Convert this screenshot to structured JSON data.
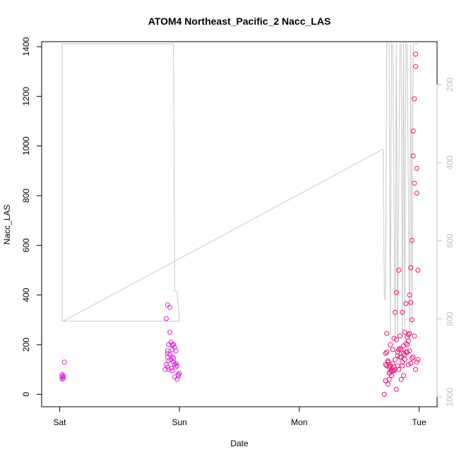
{
  "chart_data": {
    "type": "scatter",
    "title": "ATOM4 Northeast_Pacific_2 Nacc_LAS",
    "xlabel": "Date",
    "ylabel": "Nacc_LAS",
    "x_ticks": [
      "Sat",
      "Sun",
      "Mon",
      "Tue"
    ],
    "x_tick_days": [
      0,
      1,
      2,
      3
    ],
    "xlim_days": [
      -0.15,
      3.15
    ],
    "ylim": [
      -50,
      1420
    ],
    "y_ticks": [
      0,
      200,
      400,
      600,
      800,
      1000,
      1200,
      1400
    ],
    "y2_ticks": [
      200,
      400,
      600,
      800,
      1000
    ],
    "y2lim_reversed": [
      1025,
      90
    ],
    "grid": false,
    "legend": "none",
    "colors": {
      "points_magenta": "#dd22dd",
      "points_pink": "#ee1177",
      "altitude_line": "#c8c8c8",
      "axis": "#000000",
      "right_axis": "#bfbfbf"
    },
    "series": [
      {
        "points_day": [
          0.02,
          0.03,
          0.02,
          0.03,
          0.02,
          0.03,
          0.04
        ],
        "points_value": [
          62,
          65,
          70,
          75,
          80,
          72,
          130
        ],
        "color": "#dd22dd"
      },
      {
        "points_day": [
          0.88,
          0.89,
          0.9,
          0.9,
          0.91,
          0.89,
          0.92,
          0.93,
          0.9,
          0.91,
          0.94,
          0.92,
          0.93,
          0.95,
          0.96,
          0.94,
          0.95,
          0.97,
          0.96,
          0.97,
          0.98,
          0.99,
          0.93,
          0.94,
          0.92,
          0.9,
          0.96,
          0.98,
          0.99,
          1.0,
          0.97,
          0.95,
          0.9,
          0.91,
          0.94
        ],
        "points_value": [
          100,
          120,
          150,
          175,
          200,
          305,
          160,
          140,
          110,
          135,
          180,
          250,
          210,
          200,
          190,
          150,
          130,
          175,
          120,
          110,
          115,
          80,
          105,
          95,
          350,
          360,
          70,
          60,
          75,
          85,
          125,
          145,
          165,
          100,
          200
        ],
        "color": "#dd22dd"
      },
      {
        "points_day": [
          2.71,
          2.72,
          2.72,
          2.73,
          2.73,
          2.74,
          2.74,
          2.75,
          2.75,
          2.76,
          2.76,
          2.77,
          2.77,
          2.78,
          2.78,
          2.79,
          2.79,
          2.8,
          2.8,
          2.81,
          2.81,
          2.82,
          2.82,
          2.83,
          2.83,
          2.84,
          2.84,
          2.85,
          2.85,
          2.86,
          2.86,
          2.87,
          2.87,
          2.88,
          2.88,
          2.89,
          2.89,
          2.9,
          2.9,
          2.91,
          2.91,
          2.92,
          2.92,
          2.93,
          2.93,
          2.94,
          2.94,
          2.95,
          2.95,
          2.96,
          2.96,
          2.97,
          2.97,
          2.98,
          2.98,
          2.99,
          2.99,
          2.72,
          2.74,
          2.76,
          2.78,
          2.8,
          2.82,
          2.84,
          2.86,
          2.88,
          2.9,
          2.92,
          2.94,
          2.96,
          2.98,
          2.73,
          2.75,
          2.77,
          2.79,
          2.81,
          2.83,
          2.85,
          2.87,
          2.89,
          2.91,
          2.93,
          2.95,
          2.97
        ],
        "points_value": [
          0,
          55,
          120,
          170,
          245,
          40,
          135,
          60,
          110,
          90,
          200,
          105,
          75,
          180,
          125,
          95,
          225,
          330,
          140,
          20,
          410,
          115,
          170,
          100,
          500,
          150,
          235,
          60,
          180,
          130,
          330,
          165,
          75,
          250,
          140,
          205,
          365,
          170,
          230,
          120,
          215,
          400,
          245,
          510,
          370,
          300,
          620,
          1060,
          960,
          850,
          1190,
          1320,
          1370,
          810,
          910,
          500,
          140,
          165,
          130,
          115,
          95,
          100,
          155,
          185,
          115,
          160,
          200,
          175,
          145,
          235,
          130,
          115,
          85,
          95,
          110,
          220,
          180,
          150,
          195,
          170,
          240,
          125,
          150,
          100
        ],
        "color": "#ee1177"
      }
    ],
    "altitude_line": {
      "label": "right axis",
      "day": [
        0.01,
        0.02,
        0.02,
        0.03,
        0.9,
        0.91,
        0.92,
        0.93,
        0.94,
        0.95,
        0.96,
        0.98,
        1.0,
        1.0,
        0.99,
        0.02,
        0.02,
        0.03,
        2.7,
        2.7,
        2.71,
        2.72,
        2.73,
        2.75,
        2.76,
        2.77,
        2.78,
        2.8,
        2.81,
        2.82,
        2.84,
        2.85,
        2.86,
        2.87,
        2.88,
        2.89,
        2.9,
        2.92,
        2.93,
        2.94,
        2.95,
        2.96,
        2.97,
        2.98,
        2.99
      ],
      "value": [
        806,
        806,
        96,
        96,
        96,
        96,
        96,
        96,
        96,
        96,
        730,
        730,
        806,
        806,
        806,
        806,
        806,
        806,
        365,
        365,
        750,
        750,
        96,
        96,
        850,
        96,
        96,
        850,
        96,
        850,
        96,
        96,
        850,
        96,
        820,
        96,
        96,
        850,
        96,
        820,
        96,
        96,
        96,
        96,
        96
      ]
    }
  }
}
